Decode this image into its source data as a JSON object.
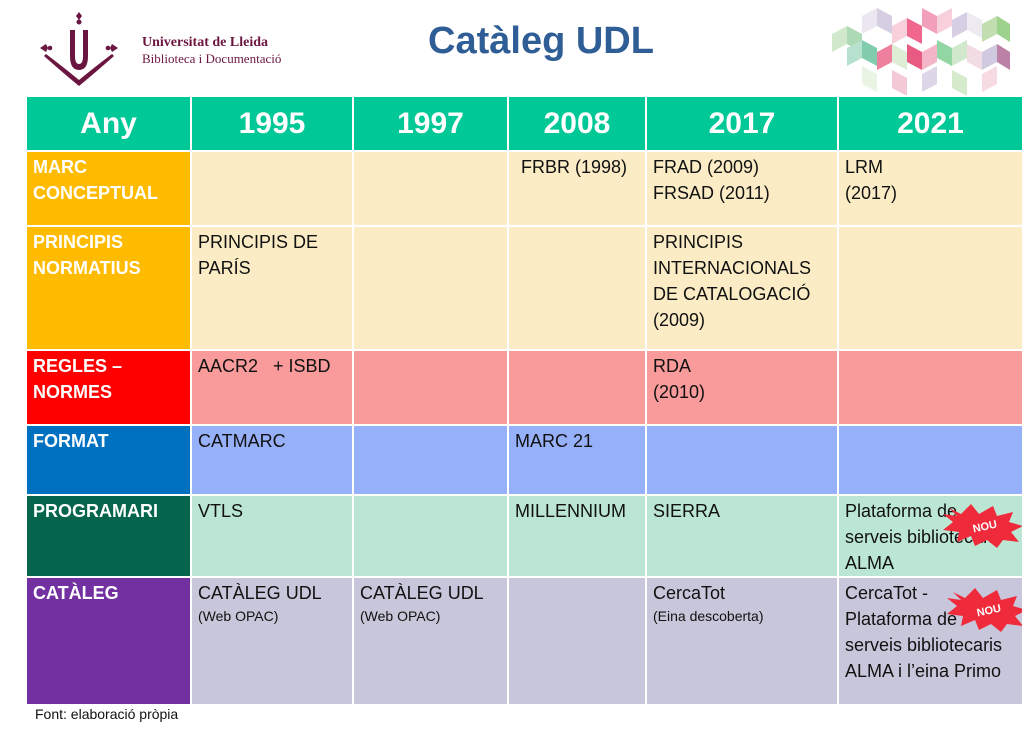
{
  "header": {
    "university_line1": "Universitat de Lleida",
    "university_line2": "Biblioteca i Documentació",
    "title": "Catàleg UDL"
  },
  "table": {
    "columns": [
      "Any",
      "1995",
      "1997",
      "2008",
      "2017",
      "2021"
    ],
    "rows": [
      {
        "label": "MARC CONCEPTUAL",
        "cells": [
          "",
          "",
          "FRBR (1998)",
          "FRAD (2009)\nFRSAD (2011)",
          "LRM\n(2017)"
        ]
      },
      {
        "label": "PRINCIPIS NORMATIUS",
        "cells": [
          "PRINCIPIS DE PARÍS",
          "",
          "",
          "PRINCIPIS INTERNACIONALS DE CATALOGACIÓ (2009)",
          ""
        ]
      },
      {
        "label": "REGLES – NORMES",
        "cells": [
          "AACR2   + ISBD",
          "",
          "",
          "RDA\n(2010)",
          ""
        ]
      },
      {
        "label": "FORMAT",
        "cells": [
          "CATMARC",
          "",
          "MARC 21",
          "",
          ""
        ]
      },
      {
        "label": "PROGRAMARI",
        "cells": [
          "VTLS",
          "",
          "MILLENNIUM",
          "SIERRA",
          "Plataforma de serveis bibliotecaris ALMA"
        ]
      },
      {
        "label": "CATÀLEG",
        "cells": [
          "CATÀLEG UDL",
          "CATÀLEG UDL",
          "",
          "CercaTot",
          "CercaTot - Plataforma de serveis bibliotecaris ALMA i l’eina Primo"
        ],
        "notes": [
          "(Web OPAC)",
          "(Web OPAC)",
          "",
          "(Eina descoberta)",
          ""
        ]
      }
    ]
  },
  "badges": {
    "label": "NOU",
    "color": "#ef2a3b"
  },
  "footer": {
    "source": "Font: elaboració pròpia"
  },
  "colors": {
    "header_row": "#00c896",
    "marc_conceptual": "#ffbb00",
    "regles": "#ff0000",
    "format": "#0070c0",
    "programari": "#05654c",
    "cataleg": "#7230a0",
    "title": "#2f5d95"
  }
}
